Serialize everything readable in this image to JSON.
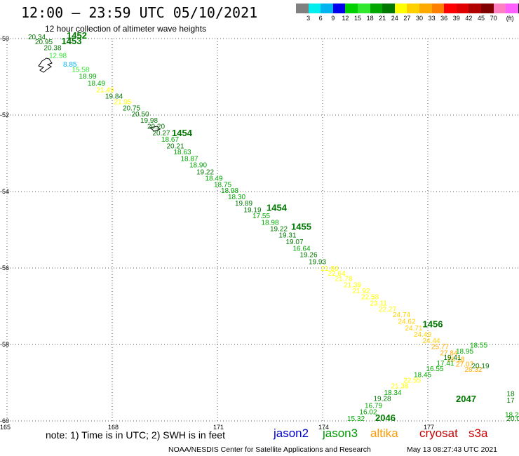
{
  "header": {
    "title": "12:00 — 23:59 UTC 05/10/2021",
    "subtitle": "12 hour collection of altimeter wave heights"
  },
  "legend": {
    "colors": [
      "#808080",
      "#00eeee",
      "#00b4f0",
      "#0000ee",
      "#00d000",
      "#30e830",
      "#00a800",
      "#007800",
      "#ffff00",
      "#ffd000",
      "#ffaa00",
      "#ff8000",
      "#ff0000",
      "#e00000",
      "#b00000",
      "#800000",
      "#ff80c0",
      "#ff60ff",
      "#000000"
    ],
    "labels": [
      "3",
      "6",
      "9",
      "12",
      "15",
      "18",
      "21",
      "24",
      "27",
      "30",
      "33",
      "36",
      "39",
      "42",
      "45",
      "70",
      "(ft)"
    ]
  },
  "chart_data": {
    "type": "map",
    "axes": {
      "lon_range": [
        165,
        179.6
      ],
      "lat_range": [
        -60,
        -50
      ],
      "x_ticks": [
        165,
        168,
        171,
        174,
        177
      ],
      "y_ticks": [
        -50,
        -52,
        -54,
        -56,
        -58,
        -60
      ],
      "x_tick_labels": [
        "165",
        "168",
        "171",
        "174",
        "177"
      ],
      "y_tick_labels": [
        "-50",
        "-52",
        "-54",
        "-56",
        "-58",
        "-60"
      ],
      "grid": "dotted"
    },
    "time_labels": [
      {
        "text": "1452",
        "lon": 166.7,
        "lat": -50.0
      },
      {
        "text": "1453",
        "lon": 166.55,
        "lat": -50.15
      },
      {
        "text": "1454",
        "lon": 169.7,
        "lat": -52.55
      },
      {
        "text": "1454",
        "lon": 172.4,
        "lat": -54.5
      },
      {
        "text": "1455",
        "lon": 173.1,
        "lat": -55.0
      },
      {
        "text": "1456",
        "lon": 176.85,
        "lat": -57.55
      },
      {
        "text": "2047",
        "lon": 177.8,
        "lat": -59.5
      },
      {
        "text": "2046",
        "lon": 175.5,
        "lat": -60.0
      }
    ],
    "tracks": [
      {
        "name": "",
        "color": "#007800",
        "points": [
          {
            "v": "20.34",
            "lon": 165.6,
            "lat": -50.02,
            "c": "#007800"
          },
          {
            "v": "20.95",
            "lon": 165.8,
            "lat": -50.15,
            "c": "#007800"
          },
          {
            "v": "20.38",
            "lon": 166.05,
            "lat": -50.3,
            "c": "#007800"
          },
          {
            "v": "12.98",
            "lon": 166.2,
            "lat": -50.5,
            "c": "#30e830"
          },
          {
            "v": "8.85",
            "lon": 166.6,
            "lat": -50.73,
            "c": "#00b4f0"
          },
          {
            "v": "15.58",
            "lon": 166.85,
            "lat": -50.87,
            "c": "#30e830"
          },
          {
            "v": "18.99",
            "lon": 167.05,
            "lat": -51.05,
            "c": "#00a800"
          },
          {
            "v": "18.49",
            "lon": 167.3,
            "lat": -51.23,
            "c": "#00a800"
          },
          {
            "v": "21.49",
            "lon": 167.55,
            "lat": -51.4,
            "c": "#ffff00"
          },
          {
            "v": "19.84",
            "lon": 167.8,
            "lat": -51.57,
            "c": "#007800"
          },
          {
            "v": "21.95",
            "lon": 168.05,
            "lat": -51.72,
            "c": "#ffff00"
          },
          {
            "v": "20.75",
            "lon": 168.3,
            "lat": -51.88,
            "c": "#007800"
          },
          {
            "v": "20.50",
            "lon": 168.55,
            "lat": -52.04,
            "c": "#007800"
          },
          {
            "v": "19.98",
            "lon": 168.8,
            "lat": -52.2,
            "c": "#007800"
          },
          {
            "v": "20.20",
            "lon": 169.0,
            "lat": -52.36,
            "c": "#007800"
          },
          {
            "v": "20.27",
            "lon": 169.15,
            "lat": -52.53,
            "c": "#007800"
          },
          {
            "v": "18.67",
            "lon": 169.4,
            "lat": -52.7,
            "c": "#00a800"
          },
          {
            "v": "20.21",
            "lon": 169.55,
            "lat": -52.87,
            "c": "#007800"
          },
          {
            "v": "18.63",
            "lon": 169.75,
            "lat": -53.03,
            "c": "#00a800"
          },
          {
            "v": "18.87",
            "lon": 169.95,
            "lat": -53.2,
            "c": "#00a800"
          },
          {
            "v": "18.90",
            "lon": 170.2,
            "lat": -53.37,
            "c": "#00a800"
          },
          {
            "v": "19.22",
            "lon": 170.4,
            "lat": -53.55,
            "c": "#007800"
          },
          {
            "v": "18.49",
            "lon": 170.65,
            "lat": -53.72,
            "c": "#00a800"
          },
          {
            "v": "18.75",
            "lon": 170.9,
            "lat": -53.88,
            "c": "#00a800"
          },
          {
            "v": "18.98",
            "lon": 171.1,
            "lat": -54.04,
            "c": "#00a800"
          },
          {
            "v": "18.30",
            "lon": 171.3,
            "lat": -54.2,
            "c": "#00a800"
          },
          {
            "v": "19.89",
            "lon": 171.5,
            "lat": -54.37,
            "c": "#007800"
          },
          {
            "v": "19.19",
            "lon": 171.75,
            "lat": -54.54,
            "c": "#007800"
          },
          {
            "v": "17.55",
            "lon": 172.0,
            "lat": -54.7,
            "c": "#00a800"
          },
          {
            "v": "18.98",
            "lon": 172.25,
            "lat": -54.87,
            "c": "#00a800"
          },
          {
            "v": "19.22",
            "lon": 172.5,
            "lat": -55.04,
            "c": "#007800"
          },
          {
            "v": "19.31",
            "lon": 172.75,
            "lat": -55.2,
            "c": "#007800"
          },
          {
            "v": "19.07",
            "lon": 172.95,
            "lat": -55.38,
            "c": "#007800"
          },
          {
            "v": "16.64",
            "lon": 173.15,
            "lat": -55.55,
            "c": "#00a800"
          },
          {
            "v": "19.26",
            "lon": 173.35,
            "lat": -55.72,
            "c": "#007800"
          },
          {
            "v": "19.93",
            "lon": 173.6,
            "lat": -55.9,
            "c": "#007800"
          },
          {
            "v": "21.80",
            "lon": 173.95,
            "lat": -56.07,
            "c": "#ffff00"
          },
          {
            "v": "22.64",
            "lon": 174.15,
            "lat": -56.2,
            "c": "#ffff00"
          },
          {
            "v": "21.78",
            "lon": 174.35,
            "lat": -56.34,
            "c": "#ffff00"
          },
          {
            "v": "21.39",
            "lon": 174.6,
            "lat": -56.5,
            "c": "#ffff00"
          },
          {
            "v": "21.92",
            "lon": 174.85,
            "lat": -56.66,
            "c": "#ffff00"
          },
          {
            "v": "22.58",
            "lon": 175.1,
            "lat": -56.82,
            "c": "#ffff00"
          },
          {
            "v": "23.11",
            "lon": 175.35,
            "lat": -56.98,
            "c": "#ffff00"
          },
          {
            "v": "22.27",
            "lon": 175.6,
            "lat": -57.14,
            "c": "#ffff00"
          },
          {
            "v": "24.74",
            "lon": 176.0,
            "lat": -57.28,
            "c": "#ffd000"
          },
          {
            "v": "24.62",
            "lon": 176.15,
            "lat": -57.46,
            "c": "#ffd000"
          },
          {
            "v": "24.71",
            "lon": 176.35,
            "lat": -57.63,
            "c": "#ffd000"
          },
          {
            "v": "24.49",
            "lon": 176.6,
            "lat": -57.8,
            "c": "#ffd000"
          },
          {
            "v": "24.44",
            "lon": 176.85,
            "lat": -57.96,
            "c": "#ffd000"
          },
          {
            "v": "25.77",
            "lon": 177.1,
            "lat": -58.12,
            "c": "#ffaa00"
          },
          {
            "v": "27.84",
            "lon": 177.35,
            "lat": -58.28,
            "c": "#ffaa00"
          },
          {
            "v": "28.18",
            "lon": 177.55,
            "lat": -58.45,
            "c": "#ffaa00"
          },
          {
            "v": "27.07",
            "lon": 177.8,
            "lat": -58.58,
            "c": "#ffaa00"
          },
          {
            "v": "28.32",
            "lon": 178.05,
            "lat": -58.72,
            "c": "#ffaa00"
          },
          {
            "v": "20.19",
            "lon": 178.25,
            "lat": -58.62,
            "c": "#007800"
          }
        ]
      },
      {
        "name": "",
        "color": "#007800",
        "points": [
          {
            "v": "15.32",
            "lon": 174.7,
            "lat": -60.0,
            "c": "#00a800"
          },
          {
            "v": "16.02",
            "lon": 175.05,
            "lat": -59.83,
            "c": "#00a800"
          },
          {
            "v": "16.79",
            "lon": 175.2,
            "lat": -59.66,
            "c": "#00a800"
          },
          {
            "v": "19.28",
            "lon": 175.45,
            "lat": -59.48,
            "c": "#007800"
          },
          {
            "v": "18.34",
            "lon": 175.75,
            "lat": -59.32,
            "c": "#00a800"
          },
          {
            "v": "21.38",
            "lon": 175.95,
            "lat": -59.15,
            "c": "#ffff00"
          },
          {
            "v": "22.55",
            "lon": 176.3,
            "lat": -59.0,
            "c": "#ffff00"
          },
          {
            "v": "18.45",
            "lon": 176.6,
            "lat": -58.85,
            "c": "#00a800"
          },
          {
            "v": "16.55",
            "lon": 176.95,
            "lat": -58.7,
            "c": "#00a800"
          },
          {
            "v": "17.41",
            "lon": 177.25,
            "lat": -58.55,
            "c": "#00a800"
          },
          {
            "v": "19.41",
            "lon": 177.45,
            "lat": -58.4,
            "c": "#007800"
          },
          {
            "v": "18.95",
            "lon": 177.8,
            "lat": -58.24,
            "c": "#00a800"
          },
          {
            "v": "18.55",
            "lon": 178.2,
            "lat": -58.08,
            "c": "#00a800"
          }
        ]
      },
      {
        "name": "",
        "color": "#007800",
        "points": [
          {
            "v": "18",
            "lon": 179.25,
            "lat": -59.35,
            "c": "#007800"
          },
          {
            "v": "17",
            "lon": 179.25,
            "lat": -59.52,
            "c": "#007800"
          },
          {
            "v": "18.2",
            "lon": 179.2,
            "lat": -59.9,
            "c": "#00a800"
          },
          {
            "v": "20.0",
            "lon": 179.25,
            "lat": -60.0,
            "c": "#007800"
          }
        ]
      }
    ]
  },
  "footer": {
    "note": "note: 1) Time is in UTC; 2) SWH is in feet",
    "satellites": [
      {
        "name": "jason2",
        "color": "#0000cc"
      },
      {
        "name": "jason3",
        "color": "#009900"
      },
      {
        "name": "altika",
        "color": "#ff9900"
      },
      {
        "name": "cryosat",
        "color": "#cc0000"
      },
      {
        "name": "s3a",
        "color": "#cc0000"
      }
    ],
    "credit": "NOAA/NESDIS Center for Satellite Applications and Research",
    "timestamp": "May 13 08:27:43 UTC 2021"
  }
}
